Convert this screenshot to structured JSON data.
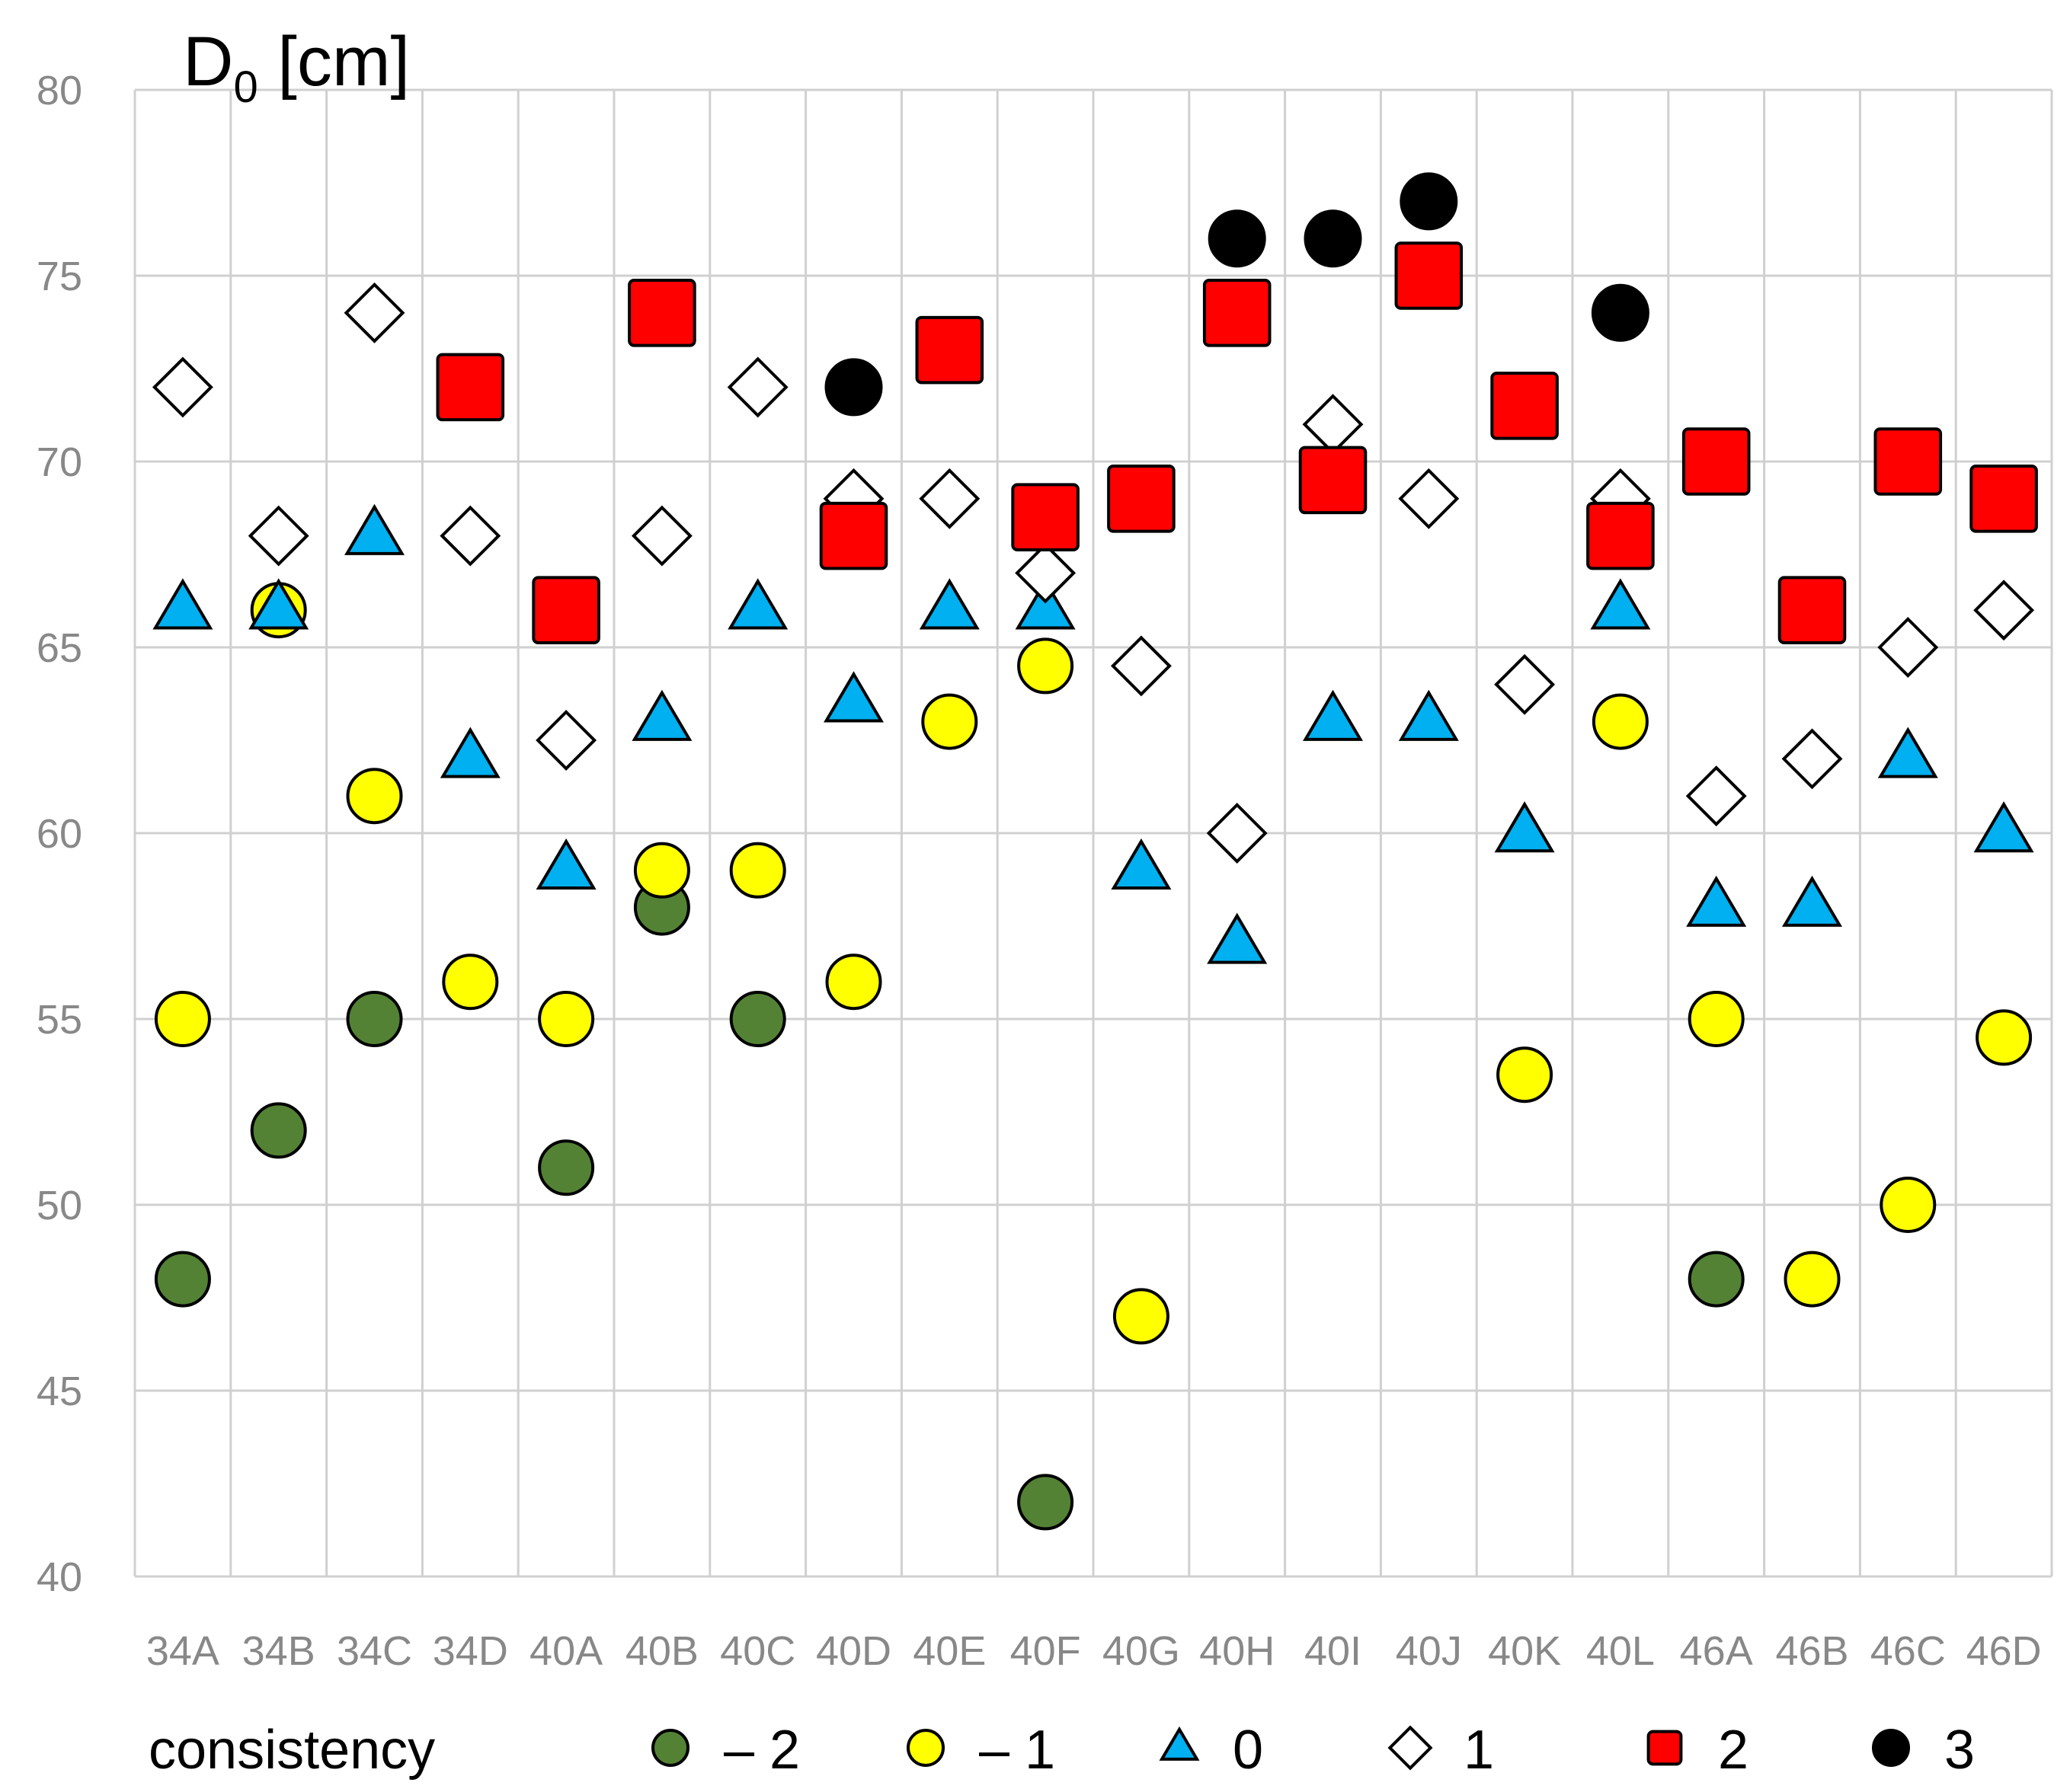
{
  "chart_data": {
    "type": "scatter",
    "title": "D",
    "title_subscript": "0",
    "title_suffix": " [cm]",
    "ylim": [
      40,
      80
    ],
    "yticks": [
      40,
      45,
      50,
      55,
      60,
      65,
      70,
      75,
      80
    ],
    "grid": true,
    "categories": [
      "34A",
      "34B",
      "34C",
      "34D",
      "40A",
      "40B",
      "40C",
      "40D",
      "40E",
      "40F",
      "40G",
      "40H",
      "40I",
      "40J",
      "40K",
      "40L",
      "46A",
      "46B",
      "46C",
      "46D"
    ],
    "legend_title": "consistency",
    "legend_position": "bottom",
    "series": [
      {
        "name": "– 2",
        "marker": "circle",
        "color": "#548235",
        "points": [
          [
            "34A",
            48
          ],
          [
            "34B",
            52
          ],
          [
            "34C",
            55
          ],
          [
            "40A",
            51
          ],
          [
            "40B",
            58
          ],
          [
            "40C",
            55
          ],
          [
            "40F",
            42
          ],
          [
            "46A",
            48
          ]
        ]
      },
      {
        "name": "– 1",
        "marker": "circle",
        "color": "#ffff00",
        "points": [
          [
            "34A",
            55
          ],
          [
            "34B",
            66
          ],
          [
            "34C",
            61
          ],
          [
            "34D",
            56
          ],
          [
            "40A",
            55
          ],
          [
            "40B",
            59
          ],
          [
            "40C",
            59
          ],
          [
            "40D",
            56
          ],
          [
            "40E",
            63
          ],
          [
            "40F",
            64.5
          ],
          [
            "40G",
            47
          ],
          [
            "40K",
            53.5
          ],
          [
            "40L",
            63
          ],
          [
            "46A",
            55
          ],
          [
            "46B",
            48
          ],
          [
            "46C",
            50
          ],
          [
            "46D",
            54.5
          ]
        ]
      },
      {
        "name": "0",
        "marker": "triangle",
        "color": "#00b0f0",
        "points": [
          [
            "34A",
            66
          ],
          [
            "34B",
            66
          ],
          [
            "34C",
            68
          ],
          [
            "34D",
            62
          ],
          [
            "40A",
            59
          ],
          [
            "40B",
            63
          ],
          [
            "40C",
            66
          ],
          [
            "40D",
            63.5
          ],
          [
            "40E",
            66
          ],
          [
            "40F",
            66
          ],
          [
            "40G",
            59
          ],
          [
            "40H",
            57
          ],
          [
            "40I",
            63
          ],
          [
            "40J",
            63
          ],
          [
            "40K",
            60
          ],
          [
            "40L",
            66
          ],
          [
            "46A",
            58
          ],
          [
            "46B",
            58
          ],
          [
            "46C",
            62
          ],
          [
            "46D",
            60
          ]
        ]
      },
      {
        "name": "1",
        "marker": "diamond",
        "color": "#ffffff",
        "points": [
          [
            "34A",
            72
          ],
          [
            "34B",
            68
          ],
          [
            "34C",
            74
          ],
          [
            "34D",
            68
          ],
          [
            "40A",
            62.5
          ],
          [
            "40B",
            68
          ],
          [
            "40C",
            72
          ],
          [
            "40D",
            69
          ],
          [
            "40E",
            69
          ],
          [
            "40F",
            67
          ],
          [
            "40G",
            64.5
          ],
          [
            "40H",
            60
          ],
          [
            "40I",
            71
          ],
          [
            "40J",
            69
          ],
          [
            "40K",
            64
          ],
          [
            "40L",
            69
          ],
          [
            "46A",
            61
          ],
          [
            "46B",
            62
          ],
          [
            "46C",
            65
          ],
          [
            "46D",
            66
          ]
        ]
      },
      {
        "name": "2",
        "marker": "square",
        "color": "#ff0000",
        "points": [
          [
            "34D",
            72
          ],
          [
            "40A",
            66
          ],
          [
            "40B",
            74
          ],
          [
            "40D",
            68
          ],
          [
            "40E",
            73
          ],
          [
            "40F",
            68.5
          ],
          [
            "40G",
            69
          ],
          [
            "40H",
            74
          ],
          [
            "40I",
            69.5
          ],
          [
            "40J",
            75
          ],
          [
            "40K",
            71.5
          ],
          [
            "40L",
            68
          ],
          [
            "46A",
            70
          ],
          [
            "46B",
            66
          ],
          [
            "46C",
            70
          ],
          [
            "46D",
            69
          ]
        ]
      },
      {
        "name": "3",
        "marker": "circle",
        "color": "#000000",
        "points": [
          [
            "40D",
            72
          ],
          [
            "40H",
            76
          ],
          [
            "40I",
            76
          ],
          [
            "40J",
            77
          ],
          [
            "40L",
            74
          ]
        ]
      }
    ]
  }
}
